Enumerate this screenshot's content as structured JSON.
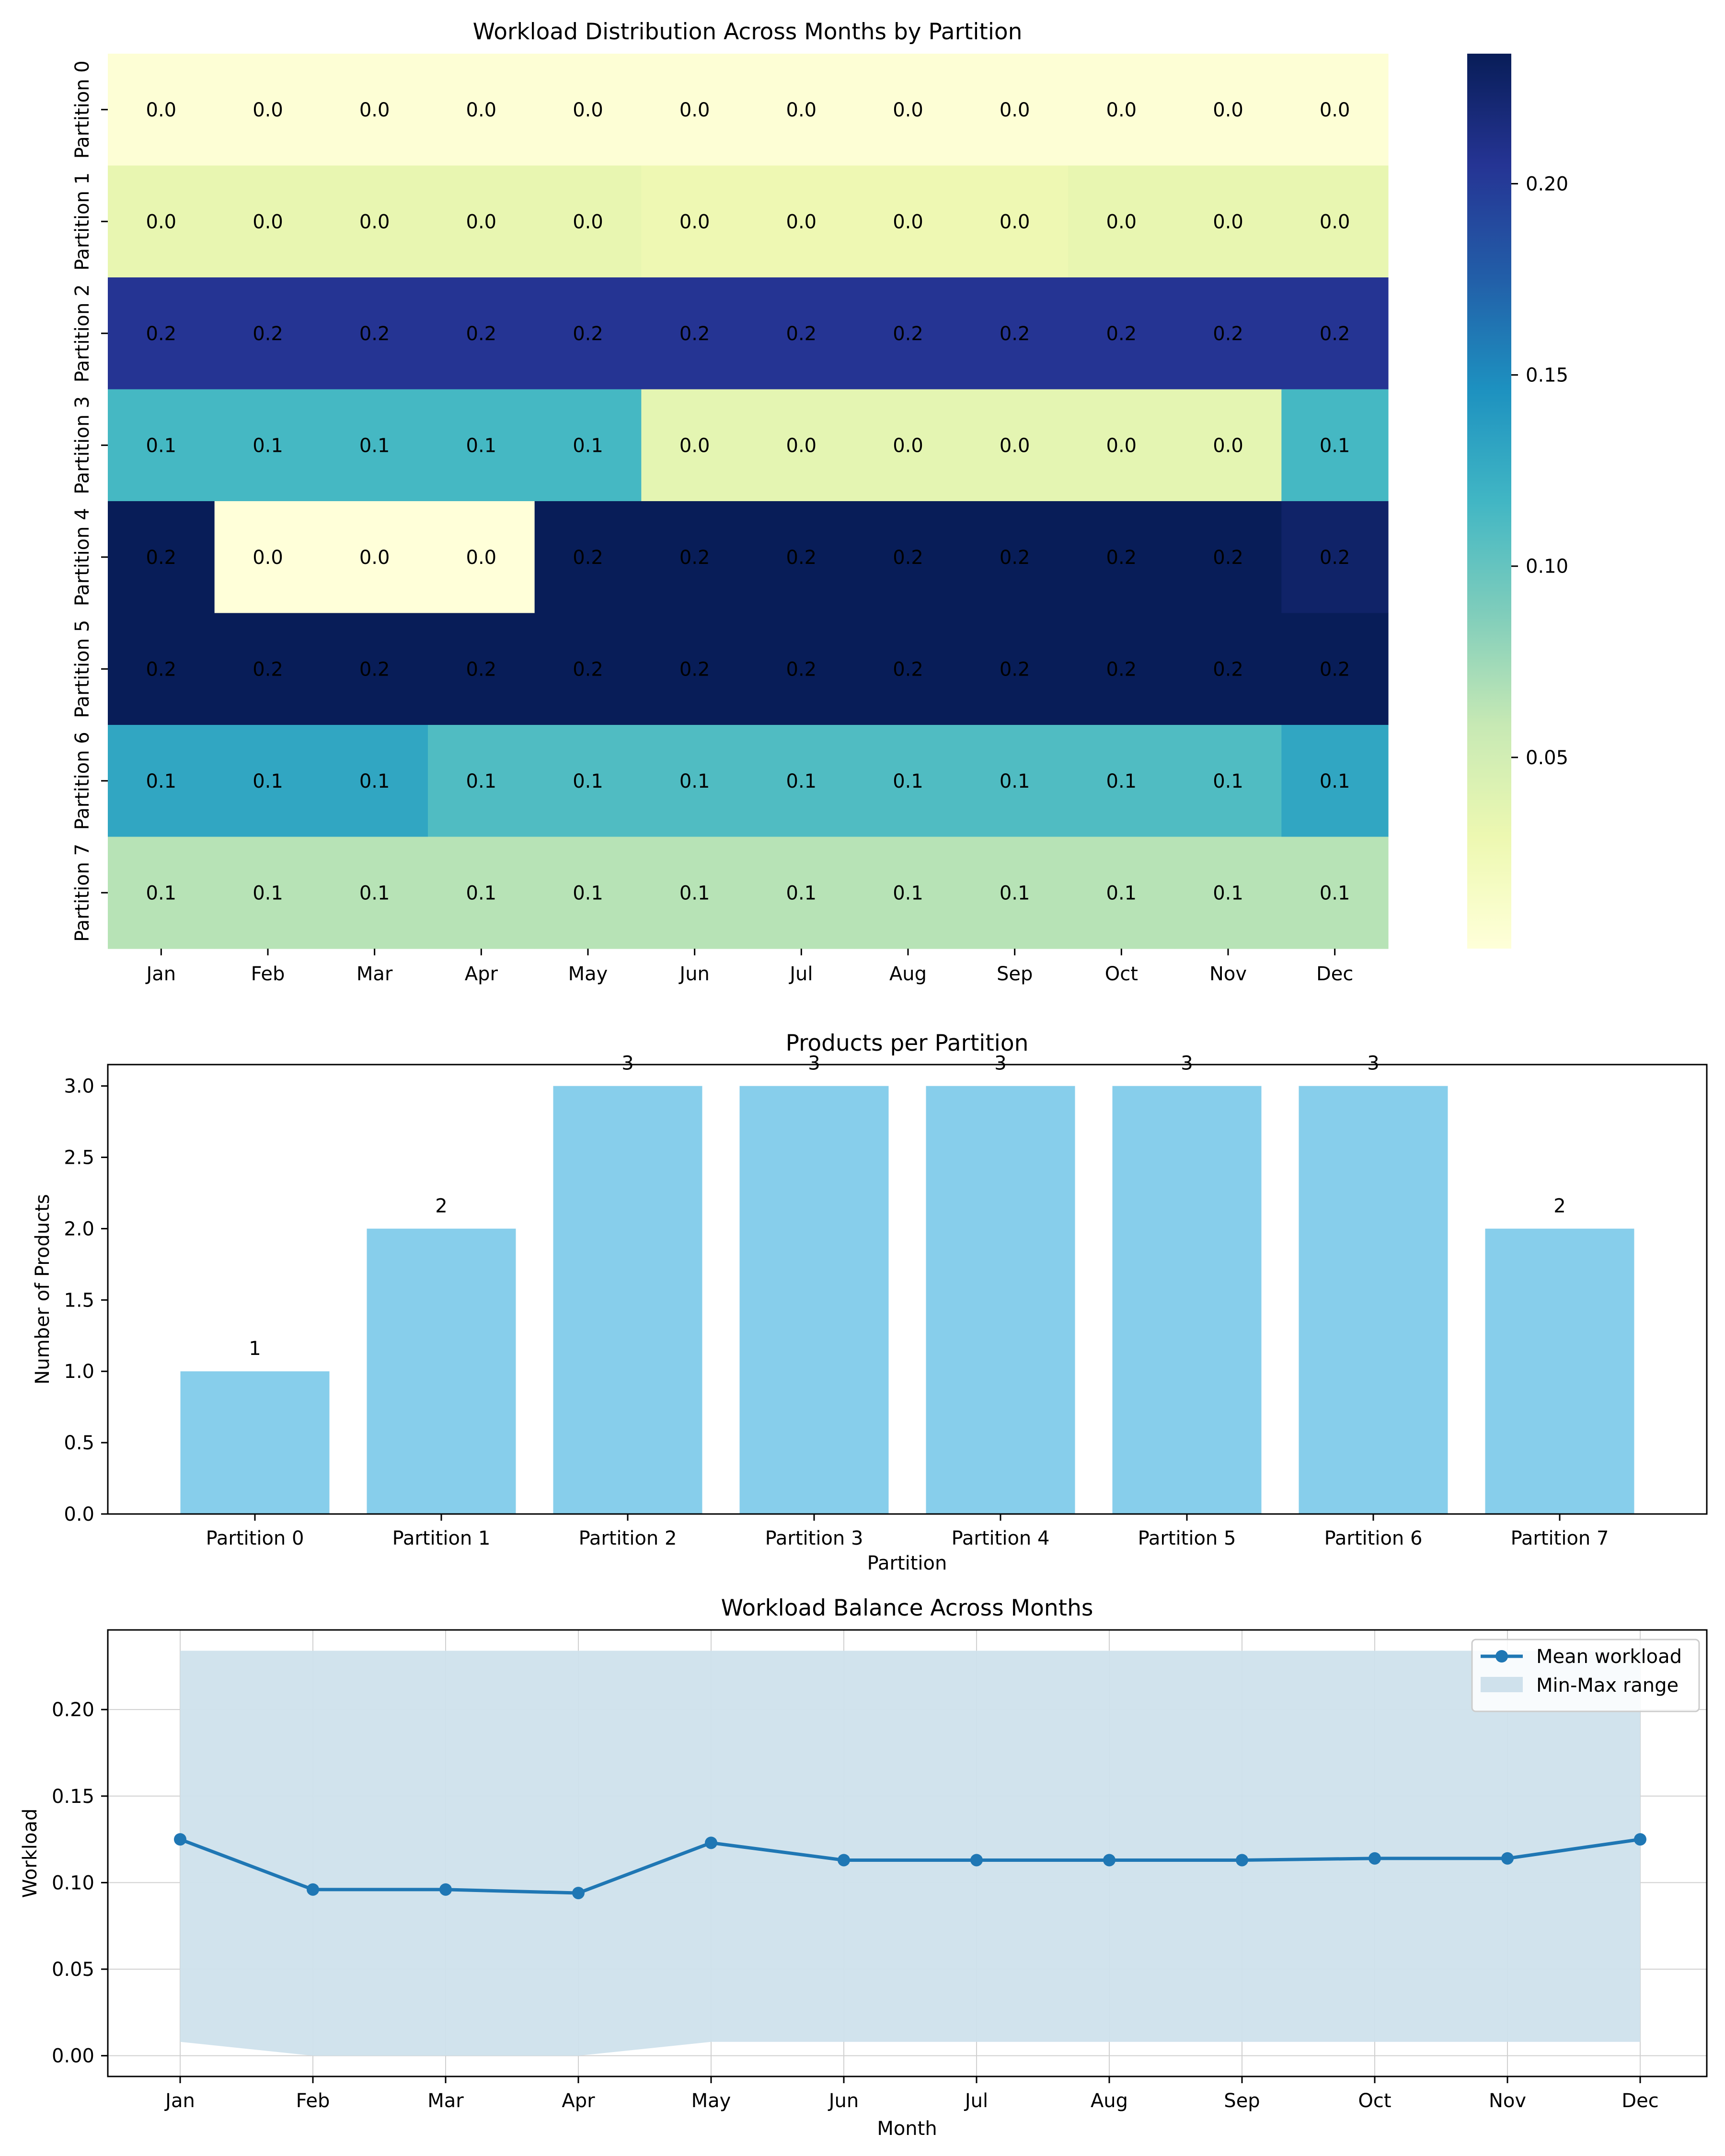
{
  "chart_data": [
    {
      "type": "heatmap",
      "title": "Workload Distribution Across Months by Partition",
      "x": [
        "Jan",
        "Feb",
        "Mar",
        "Apr",
        "May",
        "Jun",
        "Jul",
        "Aug",
        "Sep",
        "Oct",
        "Nov",
        "Dec"
      ],
      "y": [
        "Partition 0",
        "Partition 1",
        "Partition 2",
        "Partition 3",
        "Partition 4",
        "Partition 5",
        "Partition 6",
        "Partition 7"
      ],
      "values": [
        [
          0.003,
          0.003,
          0.003,
          0.003,
          0.003,
          0.003,
          0.003,
          0.003,
          0.003,
          0.003,
          0.003,
          0.003
        ],
        [
          0.033,
          0.033,
          0.033,
          0.033,
          0.033,
          0.028,
          0.028,
          0.028,
          0.028,
          0.033,
          0.033,
          0.033
        ],
        [
          0.205,
          0.205,
          0.205,
          0.205,
          0.205,
          0.205,
          0.205,
          0.205,
          0.205,
          0.205,
          0.205,
          0.205
        ],
        [
          0.115,
          0.115,
          0.115,
          0.115,
          0.115,
          0.036,
          0.036,
          0.036,
          0.036,
          0.036,
          0.036,
          0.115
        ],
        [
          0.234,
          0.0,
          0.0,
          0.0,
          0.234,
          0.234,
          0.234,
          0.234,
          0.234,
          0.234,
          0.234,
          0.226
        ],
        [
          0.234,
          0.234,
          0.234,
          0.234,
          0.234,
          0.234,
          0.234,
          0.234,
          0.234,
          0.234,
          0.234,
          0.234
        ],
        [
          0.13,
          0.13,
          0.13,
          0.11,
          0.11,
          0.11,
          0.11,
          0.11,
          0.11,
          0.11,
          0.11,
          0.13
        ],
        [
          0.065,
          0.065,
          0.065,
          0.065,
          0.065,
          0.065,
          0.065,
          0.065,
          0.065,
          0.065,
          0.065,
          0.065
        ]
      ],
      "annotations": [
        [
          "0.0",
          "0.0",
          "0.0",
          "0.0",
          "0.0",
          "0.0",
          "0.0",
          "0.0",
          "0.0",
          "0.0",
          "0.0",
          "0.0"
        ],
        [
          "0.0",
          "0.0",
          "0.0",
          "0.0",
          "0.0",
          "0.0",
          "0.0",
          "0.0",
          "0.0",
          "0.0",
          "0.0",
          "0.0"
        ],
        [
          "0.2",
          "0.2",
          "0.2",
          "0.2",
          "0.2",
          "0.2",
          "0.2",
          "0.2",
          "0.2",
          "0.2",
          "0.2",
          "0.2"
        ],
        [
          "0.1",
          "0.1",
          "0.1",
          "0.1",
          "0.1",
          "0.0",
          "0.0",
          "0.0",
          "0.0",
          "0.0",
          "0.0",
          "0.1"
        ],
        [
          "0.2",
          "0.0",
          "0.0",
          "0.0",
          "0.2",
          "0.2",
          "0.2",
          "0.2",
          "0.2",
          "0.2",
          "0.2",
          "0.2"
        ],
        [
          "0.2",
          "0.2",
          "0.2",
          "0.2",
          "0.2",
          "0.2",
          "0.2",
          "0.2",
          "0.2",
          "0.2",
          "0.2",
          "0.2"
        ],
        [
          "0.1",
          "0.1",
          "0.1",
          "0.1",
          "0.1",
          "0.1",
          "0.1",
          "0.1",
          "0.1",
          "0.1",
          "0.1",
          "0.1"
        ],
        [
          "0.1",
          "0.1",
          "0.1",
          "0.1",
          "0.1",
          "0.1",
          "0.1",
          "0.1",
          "0.1",
          "0.1",
          "0.1",
          "0.1"
        ]
      ],
      "colormap": "YlGnBu",
      "colorbar": {
        "range": [
          0.0,
          0.234
        ],
        "ticks": [
          0.05,
          0.1,
          0.15,
          0.2
        ],
        "tick_labels": [
          "0.05",
          "0.10",
          "0.15",
          "0.20"
        ]
      }
    },
    {
      "type": "bar",
      "title": "Products per Partition",
      "xlabel": "Partition",
      "ylabel": "Number of Products",
      "categories": [
        "Partition 0",
        "Partition 1",
        "Partition 2",
        "Partition 3",
        "Partition 4",
        "Partition 5",
        "Partition 6",
        "Partition 7"
      ],
      "values": [
        1,
        2,
        3,
        3,
        3,
        3,
        3,
        2
      ],
      "bar_labels": [
        "1",
        "2",
        "3",
        "3",
        "3",
        "3",
        "3",
        "2"
      ],
      "ylim": [
        0,
        3.15
      ],
      "yticks": [
        0.0,
        0.5,
        1.0,
        1.5,
        2.0,
        2.5,
        3.0
      ],
      "ytick_labels": [
        "0.0",
        "0.5",
        "1.0",
        "1.5",
        "2.0",
        "2.5",
        "3.0"
      ],
      "color": "#87ceeb",
      "grid": false
    },
    {
      "type": "line",
      "title": "Workload Balance Across Months",
      "xlabel": "Month",
      "ylabel": "Workload",
      "categories": [
        "Jan",
        "Feb",
        "Mar",
        "Apr",
        "May",
        "Jun",
        "Jul",
        "Aug",
        "Sep",
        "Oct",
        "Nov",
        "Dec"
      ],
      "series": [
        {
          "name": "Mean workload",
          "values": [
            0.125,
            0.096,
            0.096,
            0.094,
            0.123,
            0.113,
            0.113,
            0.113,
            0.113,
            0.114,
            0.114,
            0.125
          ],
          "color": "#1f77b4"
        }
      ],
      "band": {
        "name": "Min-Max range",
        "min": [
          0.008,
          0.0,
          0.0,
          0.0,
          0.008,
          0.008,
          0.008,
          0.008,
          0.008,
          0.008,
          0.008,
          0.008
        ],
        "max": [
          0.234,
          0.234,
          0.234,
          0.234,
          0.234,
          0.234,
          0.234,
          0.234,
          0.234,
          0.234,
          0.234,
          0.234
        ],
        "color": "#cfe1ec"
      },
      "ylim": [
        -0.012,
        0.246
      ],
      "yticks": [
        0.0,
        0.05,
        0.1,
        0.15,
        0.2
      ],
      "ytick_labels": [
        "0.00",
        "0.05",
        "0.10",
        "0.15",
        "0.20"
      ],
      "grid": true,
      "legend_placement": "top-right"
    }
  ]
}
